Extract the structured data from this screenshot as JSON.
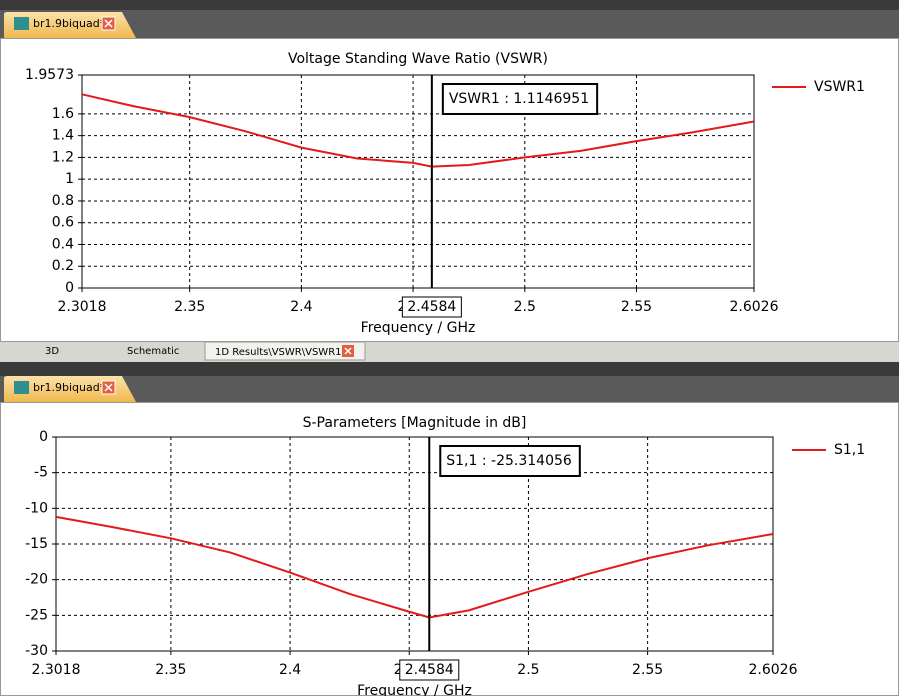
{
  "document_tabs": [
    "br1.9biquad*",
    "br1.9biquad*"
  ],
  "bottom_tabs": [
    "3D",
    "Schematic",
    "1D Results\\VSWR\\VSWR1"
  ],
  "chart_data": [
    {
      "type": "line",
      "title": "Voltage Standing Wave Ratio (VSWR)",
      "x_label": "Frequency / GHz",
      "x": [
        2.3018,
        2.325,
        2.35,
        2.375,
        2.4,
        2.425,
        2.45,
        2.4584,
        2.475,
        2.5,
        2.525,
        2.55,
        2.575,
        2.6026
      ],
      "series": [
        {
          "name": "VSWR1",
          "color": "#e41a1a",
          "values": [
            1.78,
            1.67,
            1.57,
            1.44,
            1.29,
            1.19,
            1.15,
            1.115,
            1.13,
            1.2,
            1.26,
            1.35,
            1.43,
            1.53
          ]
        }
      ],
      "xlim": [
        2.3018,
        2.6026
      ],
      "xticks": [
        2.3018,
        2.35,
        2.4,
        2.45,
        2.5,
        2.55,
        2.6026
      ],
      "ylim": [
        0,
        1.9573
      ],
      "yticks": [
        0,
        0.2,
        0.4,
        0.6,
        0.8,
        1,
        1.2,
        1.4,
        1.6,
        1.9573
      ],
      "grid": true,
      "legend": "right",
      "marker": {
        "x": 2.4584,
        "label": "VSWR1 : 1.1146951"
      }
    },
    {
      "type": "line",
      "title": "S-Parameters [Magnitude in dB]",
      "x_label": "Frequency / GHz",
      "x": [
        2.3018,
        2.325,
        2.35,
        2.375,
        2.4,
        2.425,
        2.45,
        2.4584,
        2.475,
        2.5,
        2.525,
        2.55,
        2.575,
        2.6026
      ],
      "series": [
        {
          "name": "S1,1",
          "color": "#e41a1a",
          "values": [
            -11.2,
            -12.6,
            -14.2,
            -16.2,
            -19,
            -22,
            -24.5,
            -25.3,
            -24.3,
            -21.7,
            -19.2,
            -17,
            -15.2,
            -13.6
          ]
        }
      ],
      "xlim": [
        2.3018,
        2.6026
      ],
      "xticks": [
        2.3018,
        2.35,
        2.4,
        2.45,
        2.5,
        2.55,
        2.6026
      ],
      "ylim": [
        -30,
        0
      ],
      "yticks": [
        -30,
        -25,
        -20,
        -15,
        -10,
        -5,
        0
      ],
      "grid": true,
      "legend": "right",
      "marker": {
        "x": 2.4584,
        "label": "S1,1 : -25.314056"
      }
    }
  ]
}
